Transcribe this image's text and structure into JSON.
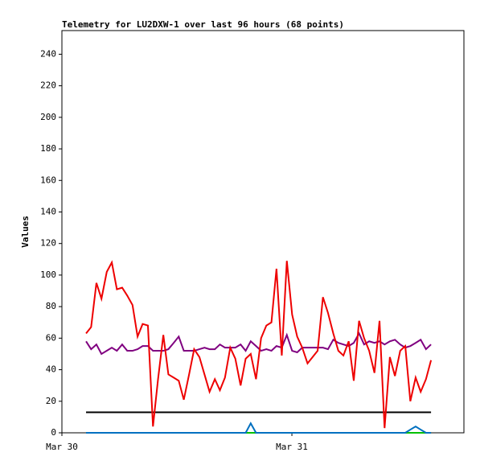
{
  "chart_data": {
    "type": "line",
    "title": "Telemetry for LU2DXW-1 over last 96 hours (68 points)",
    "ylabel": "Values",
    "xlim": [
      0,
      1.748
    ],
    "xticks": [
      {
        "value": 0,
        "label": "Mar 30"
      },
      {
        "value": 1,
        "label": "Mar 31"
      }
    ],
    "ylim": [
      0,
      255
    ],
    "yticks": [
      0,
      20,
      40,
      60,
      80,
      100,
      120,
      140,
      160,
      180,
      200,
      220,
      240
    ],
    "x": [
      0.105,
      0.127,
      0.15,
      0.172,
      0.195,
      0.217,
      0.239,
      0.262,
      0.284,
      0.307,
      0.329,
      0.351,
      0.374,
      0.396,
      0.418,
      0.441,
      0.463,
      0.486,
      0.508,
      0.53,
      0.553,
      0.575,
      0.598,
      0.62,
      0.642,
      0.665,
      0.687,
      0.709,
      0.732,
      0.754,
      0.777,
      0.799,
      0.821,
      0.844,
      0.866,
      0.889,
      0.911,
      0.933,
      0.956,
      0.978,
      1.001,
      1.023,
      1.045,
      1.068,
      1.09,
      1.112,
      1.135,
      1.157,
      1.18,
      1.202,
      1.224,
      1.247,
      1.269,
      1.292,
      1.314,
      1.336,
      1.359,
      1.381,
      1.403,
      1.426,
      1.448,
      1.471,
      1.493,
      1.515,
      1.538,
      1.56,
      1.583,
      1.605
    ],
    "series": [
      {
        "color": "#00c000",
        "values": [
          0,
          0,
          0,
          0,
          0,
          0,
          0,
          0,
          0,
          0,
          0,
          0,
          0,
          0,
          0,
          0,
          0,
          0,
          0,
          0,
          0,
          0,
          0,
          0,
          0,
          0,
          0,
          0,
          0,
          0,
          0,
          0,
          0,
          0,
          0,
          0,
          0,
          0,
          0,
          0,
          0,
          0,
          0,
          0,
          0,
          0,
          0,
          0,
          0,
          0,
          0,
          0,
          0,
          0,
          0,
          0,
          0,
          0,
          0,
          0,
          0,
          0,
          0,
          0,
          0,
          0,
          0,
          0
        ]
      },
      {
        "color": "#0070c0",
        "values": [
          0,
          0,
          0,
          0,
          0,
          0,
          0,
          0,
          0,
          0,
          0,
          0,
          0,
          0,
          0,
          0,
          0,
          0,
          0,
          0,
          0,
          0,
          0,
          0,
          0,
          0,
          0,
          0,
          0,
          0,
          0,
          0,
          6,
          0,
          0,
          0,
          0,
          0,
          0,
          0,
          0,
          0,
          0,
          0,
          0,
          0,
          0,
          0,
          0,
          0,
          0,
          0,
          0,
          0,
          0,
          0,
          0,
          0,
          0,
          0,
          0,
          0,
          0,
          2,
          4,
          2,
          0,
          0
        ]
      },
      {
        "color": "#000000",
        "values": [
          13,
          13,
          13,
          13,
          13,
          13,
          13,
          13,
          13,
          13,
          13,
          13,
          13,
          13,
          13,
          13,
          13,
          13,
          13,
          13,
          13,
          13,
          13,
          13,
          13,
          13,
          13,
          13,
          13,
          13,
          13,
          13,
          13,
          13,
          13,
          13,
          13,
          13,
          13,
          13,
          13,
          13,
          13,
          13,
          13,
          13,
          13,
          13,
          13,
          13,
          13,
          13,
          13,
          13,
          13,
          13,
          13,
          13,
          13,
          13,
          13,
          13,
          13,
          13,
          13,
          13,
          13,
          13
        ]
      },
      {
        "color": "#800080",
        "values": [
          58,
          53,
          56,
          50,
          52,
          54,
          52,
          56,
          52,
          52,
          53,
          55,
          55,
          52,
          52,
          52,
          53,
          57,
          61,
          52,
          52,
          52,
          53,
          54,
          53,
          53,
          56,
          54,
          54,
          54,
          56,
          52,
          58,
          55,
          52,
          53,
          52,
          55,
          54,
          62,
          52,
          51,
          54,
          54,
          54,
          54,
          54,
          53,
          59,
          57,
          56,
          55,
          57,
          63,
          56,
          58,
          57,
          58,
          56,
          58,
          59,
          56,
          54,
          55,
          57,
          59,
          53,
          56
        ]
      },
      {
        "color": "#ee0000",
        "values": [
          63,
          67,
          95,
          85,
          102,
          108,
          91,
          92,
          87,
          81,
          61,
          69,
          68,
          4,
          34,
          62,
          37,
          35,
          33,
          21,
          37,
          53,
          48,
          37,
          26,
          34,
          27,
          35,
          54,
          47,
          30,
          47,
          50,
          34,
          60,
          68,
          70,
          104,
          49,
          109,
          75,
          61,
          54,
          44,
          48,
          52,
          86,
          76,
          63,
          52,
          49,
          58,
          33,
          71,
          60,
          52,
          38,
          71,
          3,
          48,
          36,
          52,
          55,
          20,
          35,
          26,
          34,
          46
        ]
      }
    ]
  }
}
